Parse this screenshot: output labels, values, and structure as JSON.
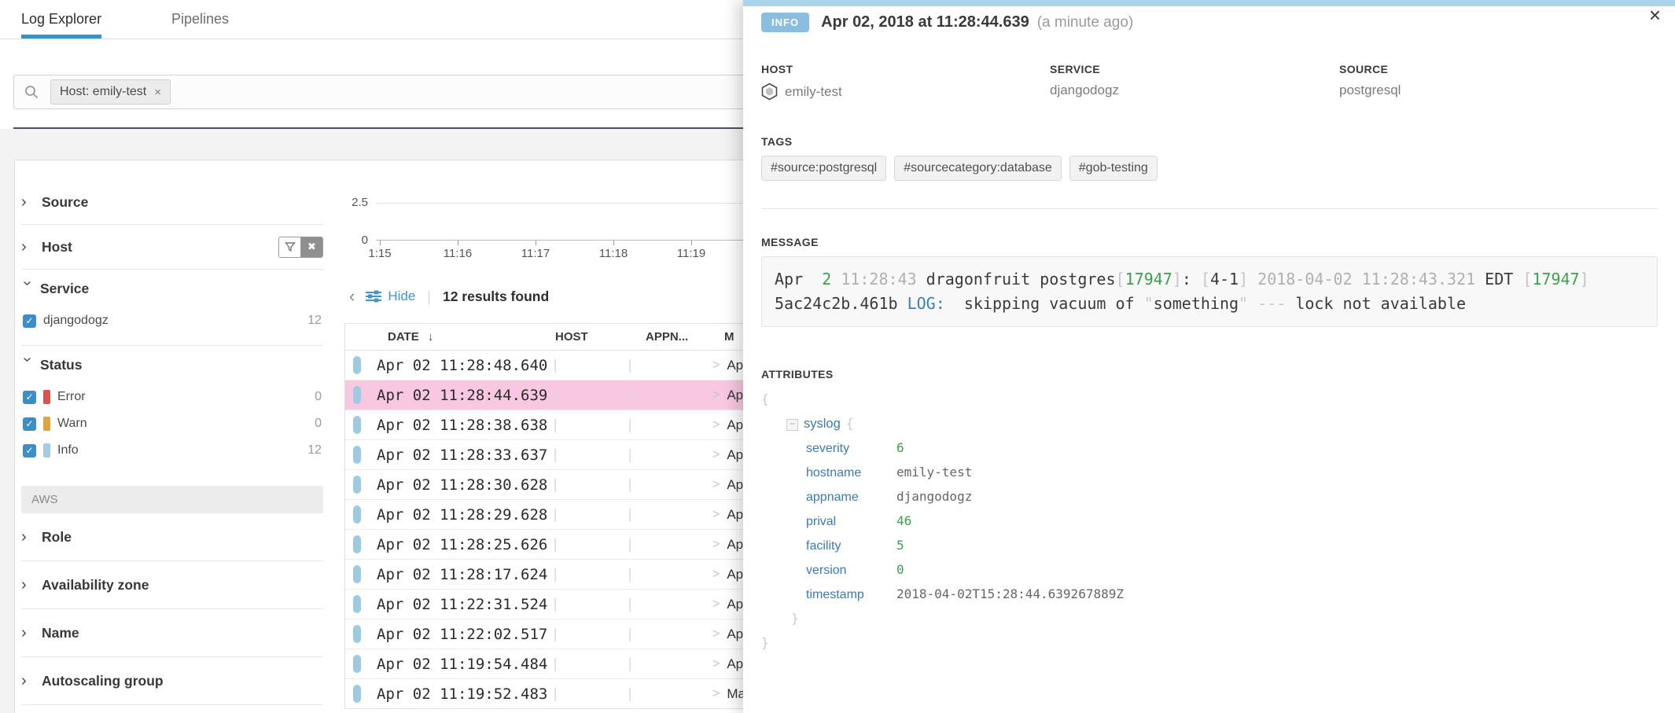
{
  "tabs": [
    {
      "label": "Log Explorer",
      "active": true
    },
    {
      "label": "Pipelines",
      "active": false
    }
  ],
  "search": {
    "chip": "Host: emily-test",
    "chip_remove": "×"
  },
  "facets": {
    "sections": [
      {
        "label": "Source",
        "expanded": false,
        "divider": true
      },
      {
        "label": "Host",
        "expanded": false,
        "divider": true,
        "has_filter": true
      },
      {
        "label": "Service",
        "expanded": true,
        "divider": true,
        "values": [
          {
            "label": "djangodogz",
            "count": "12"
          }
        ]
      },
      {
        "label": "Status",
        "expanded": true,
        "divider": false,
        "values": [
          {
            "label": "Error",
            "count": "0",
            "bar": "#d9544f"
          },
          {
            "label": "Warn",
            "count": "0",
            "bar": "#dfa440"
          },
          {
            "label": "Info",
            "count": "12",
            "bar": "#a3cbe2"
          }
        ]
      }
    ],
    "group_label": "AWS",
    "group_sections": [
      {
        "label": "Role"
      },
      {
        "label": "Availability zone"
      },
      {
        "label": "Name"
      },
      {
        "label": "Autoscaling group"
      }
    ]
  },
  "chart": {
    "y_ticks": [
      "2.5",
      "0"
    ],
    "x_ticks": [
      "1:15",
      "11:16",
      "11:17",
      "11:18",
      "11:19"
    ]
  },
  "toolbar": {
    "back": "‹",
    "hide": "Hide",
    "separator": "|",
    "results": "12 results found"
  },
  "table": {
    "headers": {
      "date": "DATE",
      "sort": "↓",
      "host": "HOST",
      "appname": "APPN...",
      "message": "M"
    },
    "empty_placeholder": "|",
    "chevron": ">",
    "selected_index": 1,
    "rows": [
      {
        "date": "Apr 02 11:28:48.640",
        "message": "Ap"
      },
      {
        "date": "Apr 02 11:28:44.639",
        "message": "Ap"
      },
      {
        "date": "Apr 02 11:28:38.638",
        "message": "Ap"
      },
      {
        "date": "Apr 02 11:28:33.637",
        "message": "Ap"
      },
      {
        "date": "Apr 02 11:28:30.628",
        "message": "Ap"
      },
      {
        "date": "Apr 02 11:28:29.628",
        "message": "Ap"
      },
      {
        "date": "Apr 02 11:28:25.626",
        "message": "Ap"
      },
      {
        "date": "Apr 02 11:28:17.624",
        "message": "Ap"
      },
      {
        "date": "Apr 02 11:22:31.524",
        "message": "Ap"
      },
      {
        "date": "Apr 02 11:22:02.517",
        "message": "Ap"
      },
      {
        "date": "Apr 02 11:19:54.484",
        "message": "Ap"
      },
      {
        "date": "Apr 02 11:19:52.483",
        "message": "Ma"
      }
    ]
  },
  "panel": {
    "close": "×",
    "badge": "INFO",
    "title": "Apr 02, 2018 at 11:28:44.639",
    "ago": "(a minute ago)",
    "meta": [
      {
        "label": "HOST",
        "value": "emily-test"
      },
      {
        "label": "SERVICE",
        "value": "djangodogz"
      },
      {
        "label": "SOURCE",
        "value": "postgresql"
      }
    ],
    "tags_label": "TAGS",
    "tags": [
      "#source:postgresql",
      "#sourcecategory:database",
      "#gob-testing"
    ],
    "message_label": "MESSAGE",
    "message": [
      [
        {
          "t": "Apr  ",
          "c": "dark"
        },
        {
          "t": "2",
          "c": "green"
        },
        {
          "t": " ",
          "c": "dark"
        },
        {
          "t": "11:28:43",
          "c": "dim"
        },
        {
          "t": " dragonfruit postgres",
          "c": "dark"
        },
        {
          "t": "[",
          "c": "punct"
        },
        {
          "t": "17947",
          "c": "green"
        },
        {
          "t": "]",
          "c": "punct"
        },
        {
          "t": ": ",
          "c": "dark"
        },
        {
          "t": "[",
          "c": "punct"
        },
        {
          "t": "4-1",
          "c": "dark"
        },
        {
          "t": "]",
          "c": "punct"
        },
        {
          "t": " 2018-04-02 11:28:43.321",
          "c": "dim"
        },
        {
          "t": " EDT ",
          "c": "dark"
        },
        {
          "t": "[",
          "c": "punct"
        },
        {
          "t": "17947",
          "c": "green"
        },
        {
          "t": "]",
          "c": "punct"
        }
      ],
      [
        {
          "t": "5ac24c2b.461b ",
          "c": "dark"
        },
        {
          "t": "LOG:",
          "c": "blue"
        },
        {
          "t": "  skipping vacuum of ",
          "c": "dark"
        },
        {
          "t": "\"",
          "c": "punct"
        },
        {
          "t": "something",
          "c": "dark"
        },
        {
          "t": "\"",
          "c": "punct"
        },
        {
          "t": " --- ",
          "c": "punct"
        },
        {
          "t": "lock not available",
          "c": "dark"
        }
      ]
    ],
    "attributes_label": "ATTRIBUTES",
    "attributes": {
      "open": "{",
      "close": "}",
      "node": {
        "name": "syslog",
        "open": "{",
        "close": "}",
        "collapse": "−"
      },
      "rows": [
        {
          "key": "severity",
          "value": "6",
          "kind": "num"
        },
        {
          "key": "hostname",
          "value": "emily-test",
          "kind": "str"
        },
        {
          "key": "appname",
          "value": "djangodogz",
          "kind": "str"
        },
        {
          "key": "prival",
          "value": "46",
          "kind": "num"
        },
        {
          "key": "facility",
          "value": "5",
          "kind": "num"
        },
        {
          "key": "version",
          "value": "0",
          "kind": "num"
        },
        {
          "key": "timestamp",
          "value": "2018-04-02T15:28:44.639267889Z",
          "kind": "str"
        }
      ]
    }
  },
  "colors": {
    "accent_blue": "#3c90c4",
    "link_blue": "#3d95c9",
    "key_blue": "#3a7ab6",
    "badge_info": "#89bedf",
    "panel_strip": "#a9d4ea",
    "status_info": "#a3cbe2",
    "status_error": "#d9544f",
    "status_warn": "#dfa440",
    "selected_row_pink": "#f8c8e1",
    "value_green": "#3ca04d"
  }
}
